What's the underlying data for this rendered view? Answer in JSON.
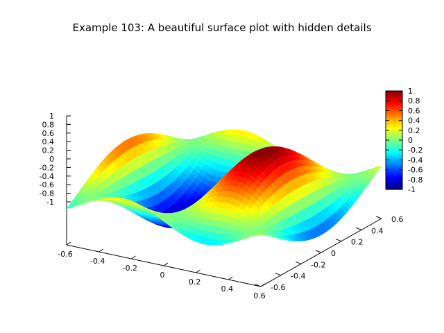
{
  "chart_data": {
    "type": "surface",
    "title": "Example 103: A beautiful surface plot with hidden details",
    "function": "z = sin(2*pi*x) * cos(pi*y)",
    "x_range": [
      -0.6,
      0.6
    ],
    "y_range": [
      -0.6,
      0.6
    ],
    "z_range": [
      -1,
      1
    ],
    "x_ticks": [
      "-0.6",
      "-0.4",
      "-0.2",
      "0",
      "0.2",
      "0.4",
      "0.6"
    ],
    "y_ticks": [
      "-0.6",
      "-0.4",
      "-0.2",
      "0",
      "0.2",
      "0.4",
      "0.6"
    ],
    "z_ticks": [
      "1",
      "0.8",
      "0.6",
      "0.4",
      "0.2",
      "0",
      "-0.2",
      "-0.4",
      "-0.6",
      "-0.8",
      "-1"
    ],
    "colorbar_ticks": [
      "1",
      "0.8",
      "0.6",
      "0.4",
      "0.2",
      "0",
      "-0.2",
      "-0.4",
      "-0.6",
      "-0.8",
      "-1"
    ],
    "colormap": [
      "#00007f",
      "#0000ff",
      "#007fff",
      "#00ffff",
      "#7fff7f",
      "#ffff00",
      "#ff7f00",
      "#ff0000",
      "#7f0000"
    ],
    "grid": false,
    "legend": "colorbar-right"
  }
}
